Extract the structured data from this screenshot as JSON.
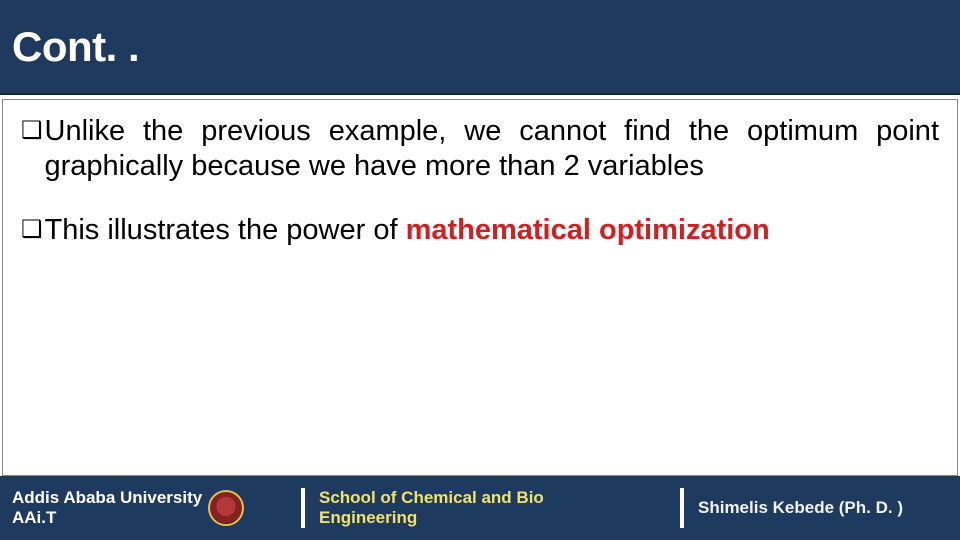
{
  "colors": {
    "header_bg": "#1f3a5f",
    "header_text": "#ffffff",
    "body_bg": "#ffffff",
    "body_text": "#000000",
    "emphasis": "#d31f1f",
    "footer_bg": "#1f3a5f",
    "footer_text": "#ffffff",
    "school_text": "#f2e26b",
    "body_border": "#888888"
  },
  "title": "Cont. .",
  "bullets": [
    {
      "marker": "❑",
      "plain": "Unlike the previous example, we cannot find the optimum point graphically because we have more than 2 variables",
      "emphasis": ""
    },
    {
      "marker": "❑",
      "plain": "This illustrates the power of ",
      "emphasis": "mathematical optimization"
    }
  ],
  "footer": {
    "university_line1": "Addis Ababa University",
    "university_line2": "AAi.T",
    "school_line1": "School of Chemical and Bio",
    "school_line2": "Engineering",
    "author": "Shimelis Kebede (Ph. D. )"
  }
}
